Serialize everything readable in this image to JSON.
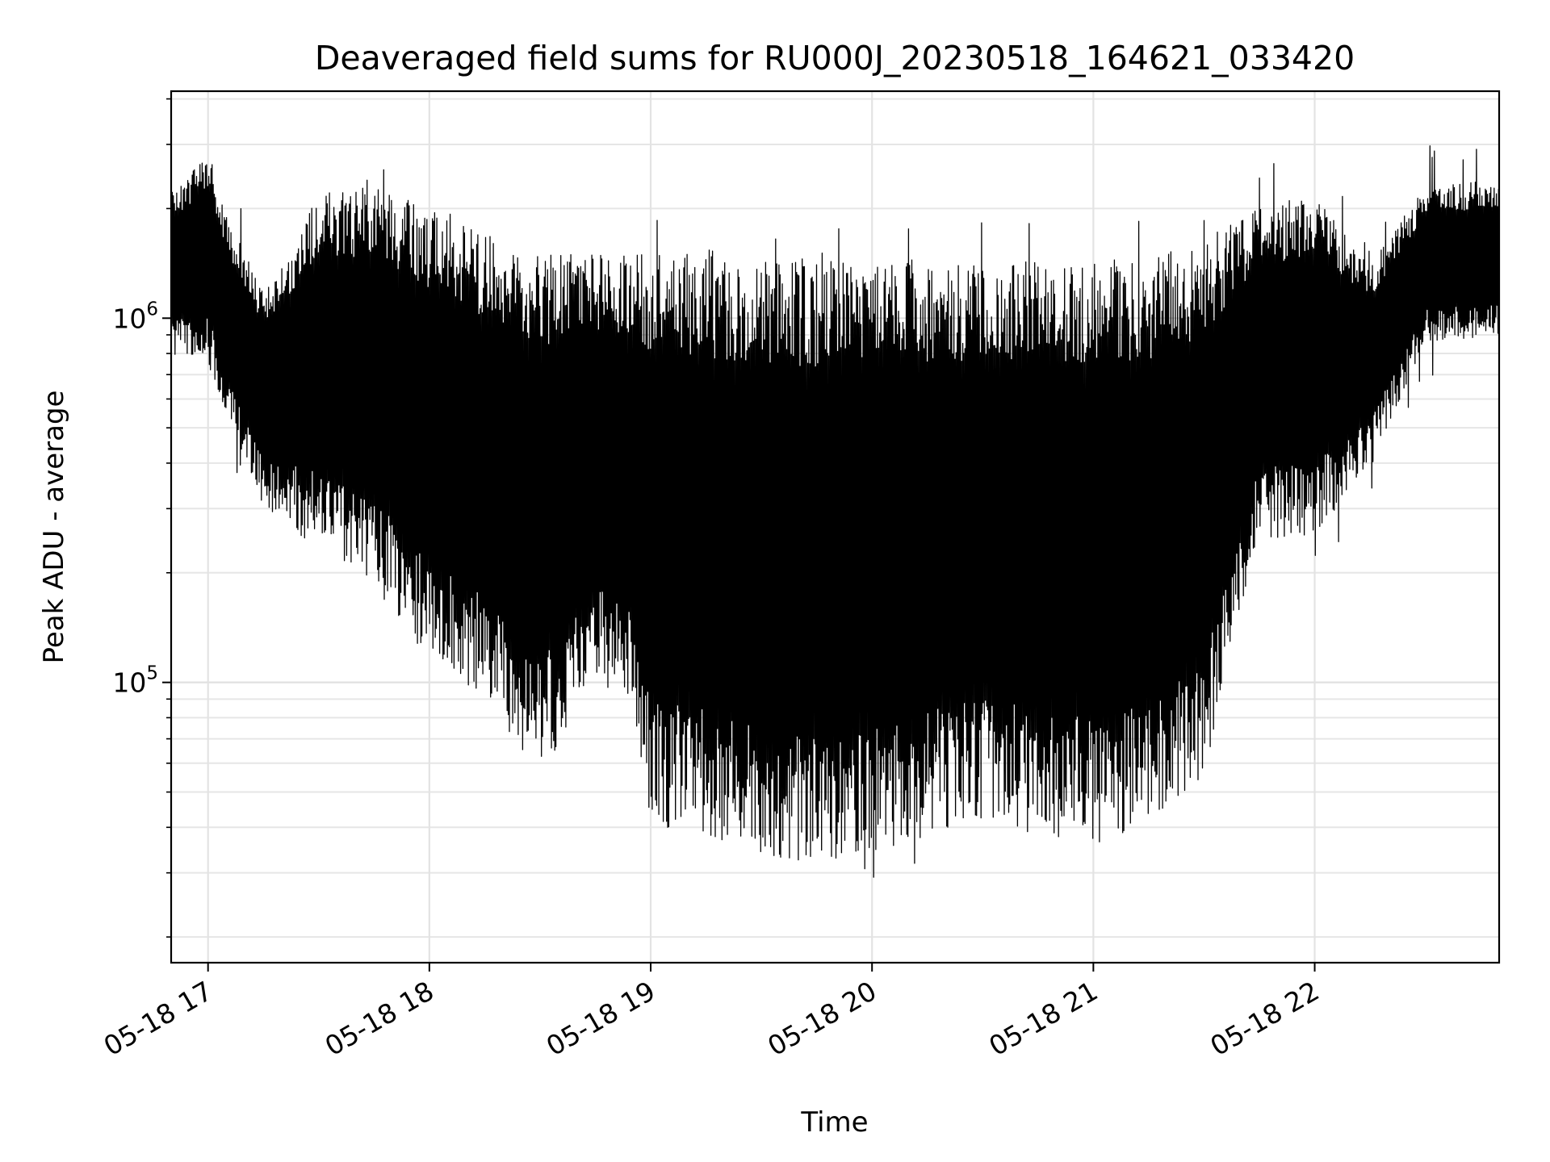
{
  "chart_data": {
    "type": "line",
    "title": "Deaveraged field sums for RU000J_20230518_164621_033420",
    "xlabel": "Time",
    "ylabel": "Peak ADU - average",
    "yscale": "log",
    "ylim": [
      17000,
      4200000
    ],
    "xlim": [
      "2023-05-18 16:50",
      "2023-05-18 22:50"
    ],
    "x_ticks": [
      {
        "value": "2023-05-18 17:00",
        "label": "05-18 17"
      },
      {
        "value": "2023-05-18 18:00",
        "label": "05-18 18"
      },
      {
        "value": "2023-05-18 19:00",
        "label": "05-18 19"
      },
      {
        "value": "2023-05-18 20:00",
        "label": "05-18 20"
      },
      {
        "value": "2023-05-18 21:00",
        "label": "05-18 21"
      },
      {
        "value": "2023-05-18 22:00",
        "label": "05-18 22"
      }
    ],
    "y_major_ticks": [
      {
        "value": 100000,
        "label_base": "10",
        "label_exp": "5"
      },
      {
        "value": 1000000,
        "label_base": "10",
        "label_exp": "6"
      }
    ],
    "grid": true,
    "line_color": "#000000",
    "series": [
      {
        "x": [
          "2023-05-18 16:50",
          "2023-05-18 17:00",
          "2023-05-18 17:05",
          "2023-05-18 17:15",
          "2023-05-18 17:30",
          "2023-05-18 17:45",
          "2023-05-18 18:00",
          "2023-05-18 18:15",
          "2023-05-18 18:30",
          "2023-05-18 18:45",
          "2023-05-18 18:55",
          "2023-05-18 19:00",
          "2023-05-18 19:15",
          "2023-05-18 19:30",
          "2023-05-18 19:45",
          "2023-05-18 20:00",
          "2023-05-18 20:15",
          "2023-05-18 20:30",
          "2023-05-18 20:45",
          "2023-05-18 21:00",
          "2023-05-18 21:15",
          "2023-05-18 21:30",
          "2023-05-18 21:45",
          "2023-05-18 22:00",
          "2023-05-18 22:15",
          "2023-05-18 22:30",
          "2023-05-18 22:50"
        ],
        "low": [
          800000,
          750000,
          550000,
          300000,
          240000,
          180000,
          120000,
          90000,
          55000,
          100000,
          90000,
          40000,
          38000,
          33000,
          32000,
          34000,
          38000,
          42000,
          38000,
          36000,
          40000,
          55000,
          250000,
          250000,
          400000,
          850000,
          900000
        ],
        "high": [
          2200000,
          2900000,
          1900000,
          1200000,
          2200000,
          2300000,
          2000000,
          1700000,
          1500000,
          1500000,
          1500000,
          1500000,
          1500000,
          1450000,
          1450000,
          1450000,
          1450000,
          1420000,
          1450000,
          1450000,
          1450000,
          1650000,
          2000000,
          2200000,
          1400000,
          2300000,
          2400000
        ]
      }
    ]
  }
}
